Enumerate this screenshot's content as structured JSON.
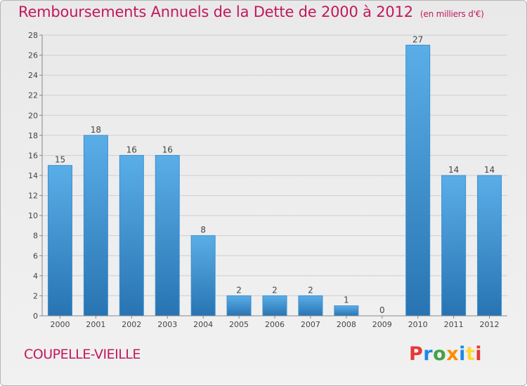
{
  "title": "Remboursements Annuels de la Dette de 2000 à 2012",
  "unit": "(en milliers d'€)",
  "city": "COUPELLE-VIEILLE",
  "logo": {
    "text": "Proxiti",
    "colors": [
      "#e53935",
      "#1e88e5",
      "#43a047",
      "#fb8c00",
      "#1e88e5",
      "#fdd835",
      "#e53935"
    ]
  },
  "colors": {
    "title": "#c2185b",
    "bar_top": "#5aaee8",
    "bar_bottom": "#2874b2"
  },
  "chart_data": {
    "type": "bar",
    "categories": [
      "2000",
      "2001",
      "2002",
      "2003",
      "2004",
      "2005",
      "2006",
      "2007",
      "2008",
      "2009",
      "2010",
      "2011",
      "2012"
    ],
    "values": [
      15,
      18,
      16,
      16,
      8,
      2,
      2,
      2,
      1,
      0,
      27,
      14,
      14
    ],
    "title": "Remboursements Annuels de la Dette de 2000 à 2012",
    "ylabel": "(en milliers d'€)",
    "ylim": [
      0,
      28
    ],
    "yticks": [
      0,
      2,
      4,
      6,
      8,
      10,
      12,
      14,
      16,
      18,
      20,
      22,
      24,
      26,
      28
    ],
    "grid": true,
    "legend": "none"
  }
}
